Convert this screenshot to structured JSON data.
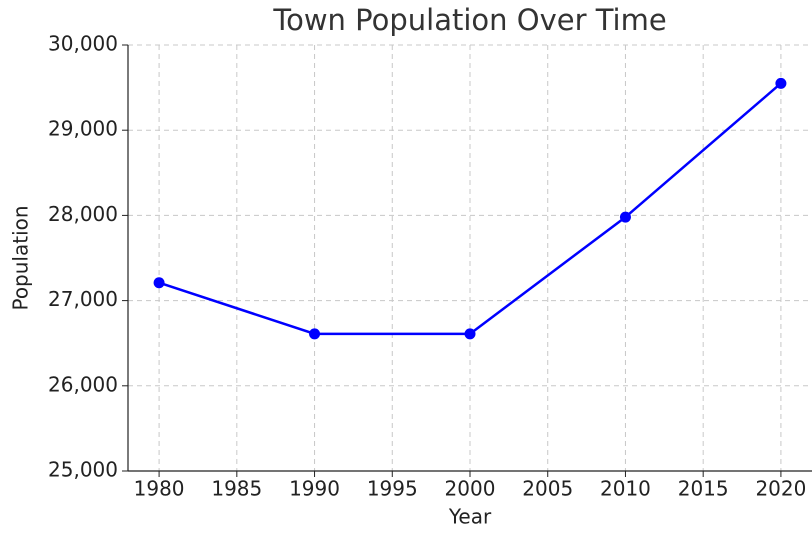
{
  "chart_data": {
    "type": "line",
    "title": "Town Population Over Time",
    "x_label": "Year",
    "y_label": "Population",
    "x": [
      1980,
      1990,
      2000,
      2010,
      2020
    ],
    "series": [
      {
        "name": "Population",
        "color": "#0000ff",
        "values": [
          27210,
          26610,
          26610,
          27980,
          29550
        ]
      }
    ],
    "xlim": [
      1978,
      2022
    ],
    "xticks": [
      1980,
      1985,
      1990,
      1995,
      2000,
      2005,
      2010,
      2015,
      2020
    ],
    "ylim": [
      25000,
      30000
    ],
    "yticks": [
      {
        "value": 25000,
        "label": "25,000"
      },
      {
        "value": 26000,
        "label": "26,000"
      },
      {
        "value": 27000,
        "label": "27,000"
      },
      {
        "value": 28000,
        "label": "28,000"
      },
      {
        "value": 29000,
        "label": "29,000"
      },
      {
        "value": 30000,
        "label": "30,000"
      }
    ],
    "grid": true
  }
}
